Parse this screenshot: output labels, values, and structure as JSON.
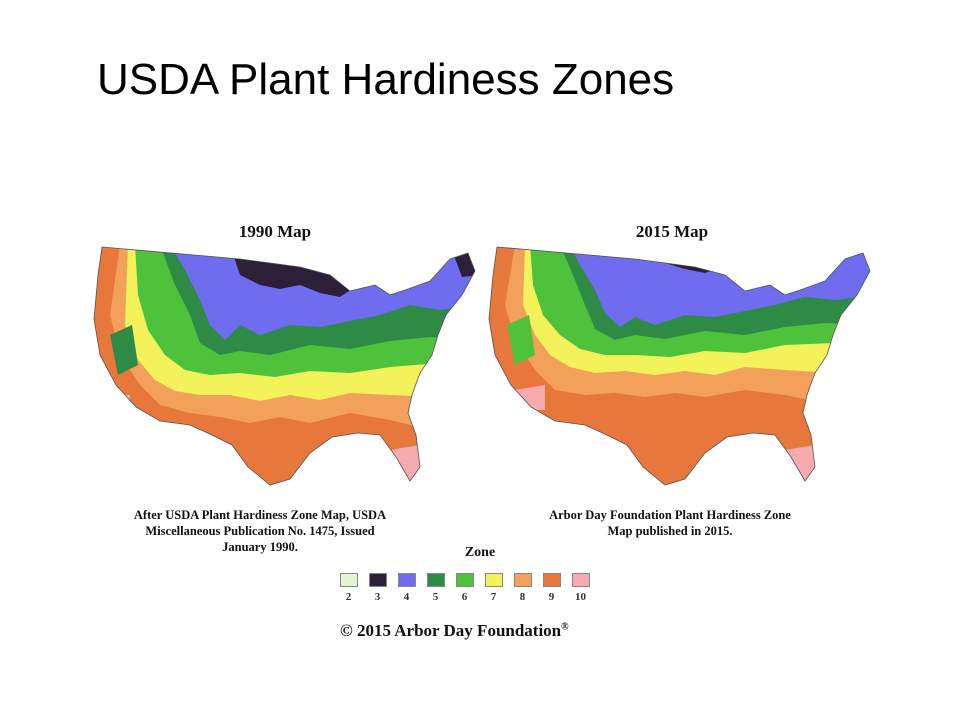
{
  "slide": {
    "title": "USDA Plant Hardiness Zones"
  },
  "maps": [
    {
      "title": "1990 Map",
      "caption_lines": [
        "After USDA Plant Hardiness Zone Map, USDA",
        "Miscellaneous Publication No. 1475, Issued",
        "January 1990."
      ]
    },
    {
      "title": "2015 Map",
      "caption_lines": [
        "Arbor Day Foundation Plant Hardiness Zone",
        "Map published in 2015."
      ]
    }
  ],
  "legend": {
    "title": "Zone",
    "zones": [
      {
        "label": "2",
        "color": "#e4f5d4"
      },
      {
        "label": "3",
        "color": "#2e1f38"
      },
      {
        "label": "4",
        "color": "#6f6cf0"
      },
      {
        "label": "5",
        "color": "#2e8b46"
      },
      {
        "label": "6",
        "color": "#4fc23c"
      },
      {
        "label": "7",
        "color": "#f4f25a"
      },
      {
        "label": "8",
        "color": "#f2a05a"
      },
      {
        "label": "9",
        "color": "#e8773c"
      },
      {
        "label": "10",
        "color": "#f7aab0"
      }
    ]
  },
  "copyright": {
    "text": "© 2015 Arbor Day Foundation",
    "mark": "®"
  }
}
